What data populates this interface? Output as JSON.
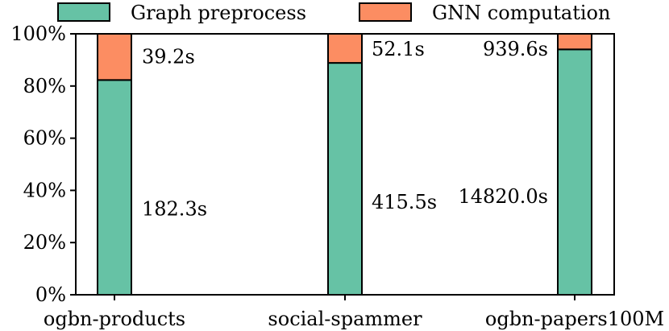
{
  "chart_data": {
    "type": "bar",
    "stacked": true,
    "normalized": true,
    "categories": [
      "ogbn-products",
      "social-spammer",
      "ogbn-papers100M"
    ],
    "series": [
      {
        "name": "Graph preprocess",
        "color": "#66c2a5",
        "values": [
          182.3,
          415.5,
          14820.0
        ],
        "labels": [
          "182.3s",
          "415.5s",
          "14820.0s"
        ]
      },
      {
        "name": "GNN computation",
        "color": "#fc8d62",
        "values": [
          39.2,
          52.1,
          939.6
        ],
        "labels": [
          "39.2s",
          "52.1s",
          "939.6s"
        ]
      }
    ],
    "ylim": [
      0,
      100
    ],
    "yticks": [
      "0%",
      "20%",
      "40%",
      "60%",
      "80%",
      "100%"
    ],
    "legend": "top, horizontal",
    "grid": false
  }
}
